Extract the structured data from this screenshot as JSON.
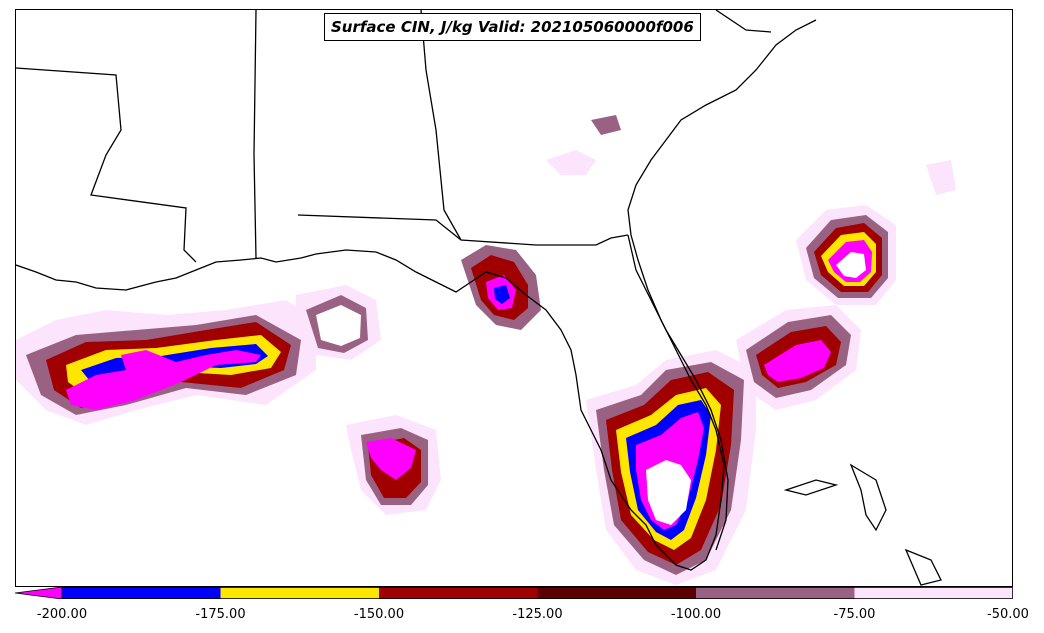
{
  "title": "Surface CIN, J/kg Valid: 202105060000f006",
  "colorbar": {
    "ticks": [
      "-200.00",
      "-175.00",
      "-150.00",
      "-125.00",
      "-100.00",
      "-75.00",
      "-50.00"
    ],
    "bins": [
      {
        "from": -225,
        "to": -200,
        "color": "#ff00ff"
      },
      {
        "from": -200,
        "to": -175,
        "color": "#0000ff"
      },
      {
        "from": -175,
        "to": -150,
        "color": "#ffe600"
      },
      {
        "from": -150,
        "to": -125,
        "color": "#a00000"
      },
      {
        "from": -125,
        "to": -100,
        "color": "#5c0000"
      },
      {
        "from": -100,
        "to": -75,
        "color": "#9a6282"
      },
      {
        "from": -75,
        "to": -50,
        "color": "#fde4fd"
      }
    ]
  }
}
